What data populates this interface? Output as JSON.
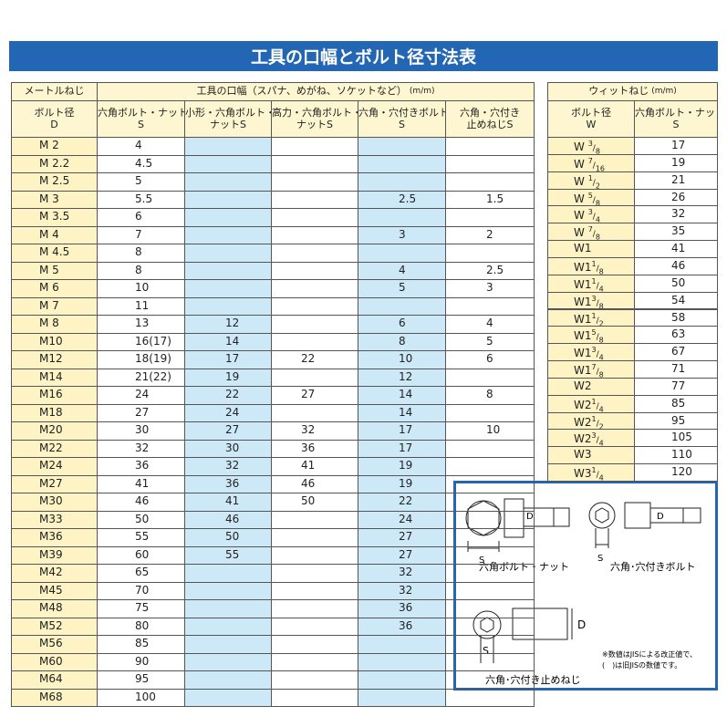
{
  "title": "工具の口幅とボルト径寸法表",
  "metric_table": {
    "group_left": "メートルねじ",
    "group_right": "工具の口幅（スパナ、めがね、ソケットなど）",
    "unit": "(m/m)",
    "columns": [
      [
        "ボルト径",
        "D"
      ],
      [
        "六角ボルト・ナット",
        "S"
      ],
      [
        "小形・六角ボルト・",
        "ナットS"
      ],
      [
        "高力・六角ボルト・",
        "ナットS"
      ],
      [
        "六角・穴付きボルト",
        "S"
      ],
      [
        "六角・穴付き",
        "止めねじS"
      ]
    ],
    "rows": [
      [
        "M 2",
        "4",
        null,
        null,
        null,
        null
      ],
      [
        "M 2.2",
        "4.5",
        null,
        null,
        null,
        null
      ],
      [
        "M 2.5",
        "5",
        null,
        null,
        null,
        null
      ],
      [
        "M 3",
        "5.5",
        null,
        null,
        "2.5",
        "1.5"
      ],
      [
        "M 3.5",
        "6",
        null,
        null,
        null,
        null
      ],
      [
        "M 4",
        "7",
        null,
        null,
        "3",
        "2"
      ],
      [
        "M 4.5",
        "8",
        null,
        null,
        null,
        null
      ],
      [
        "M 5",
        "8",
        null,
        null,
        "4",
        "2.5"
      ],
      [
        "M 6",
        "10",
        null,
        null,
        "5",
        "3"
      ],
      [
        "M 7",
        "11",
        null,
        null,
        null,
        null
      ],
      [
        "M 8",
        "13",
        "12",
        null,
        "6",
        "4"
      ],
      [
        "M10",
        "16(17)",
        "14",
        null,
        "8",
        "5"
      ],
      [
        "M12",
        "18(19)",
        "17",
        "22",
        "10",
        "6"
      ],
      [
        "M14",
        "21(22)",
        "19",
        null,
        "12",
        null
      ],
      [
        "M16",
        "24",
        "22",
        "27",
        "14",
        "8"
      ],
      [
        "M18",
        "27",
        "24",
        null,
        "14",
        null
      ],
      [
        "M20",
        "30",
        "27",
        "32",
        "17",
        "10"
      ],
      [
        "M22",
        "32",
        "30",
        "36",
        "17",
        null
      ],
      [
        "M24",
        "36",
        "32",
        "41",
        "19",
        null
      ],
      [
        "M27",
        "41",
        "36",
        "46",
        "19",
        null
      ],
      [
        "M30",
        "46",
        "41",
        "50",
        "22",
        null
      ],
      [
        "M33",
        "50",
        "46",
        null,
        "24",
        null
      ],
      [
        "M36",
        "55",
        "50",
        null,
        "27",
        null
      ],
      [
        "M39",
        "60",
        "55",
        null,
        "27",
        null
      ],
      [
        "M42",
        "65",
        null,
        null,
        "32",
        null
      ],
      [
        "M45",
        "70",
        null,
        null,
        "32",
        null
      ],
      [
        "M48",
        "75",
        null,
        null,
        "36",
        null
      ],
      [
        "M52",
        "80",
        null,
        null,
        "36",
        null
      ],
      [
        "M56",
        "85",
        null,
        null,
        null,
        null
      ],
      [
        "M60",
        "90",
        null,
        null,
        null,
        null
      ],
      [
        "M64",
        "95",
        null,
        null,
        null,
        null
      ],
      [
        "M68",
        "100",
        null,
        null,
        null,
        null
      ]
    ]
  },
  "whitworth_table": {
    "group": "ウィットねじ",
    "unit": "(m/m)",
    "columns": [
      [
        "ボルト径",
        "W"
      ],
      [
        "六角ボルト・ナット",
        "S"
      ]
    ],
    "rows": [
      [
        {
          "base": "W ",
          "num": "3",
          "den": "8"
        },
        "17"
      ],
      [
        {
          "base": "W ",
          "num": "7",
          "den": "16"
        },
        "19"
      ],
      [
        {
          "base": "W ",
          "num": "1",
          "den": "2"
        },
        "21"
      ],
      [
        {
          "base": "W ",
          "num": "5",
          "den": "8"
        },
        "26"
      ],
      [
        {
          "base": "W ",
          "num": "3",
          "den": "4"
        },
        "32"
      ],
      [
        {
          "base": "W ",
          "num": "7",
          "den": "8"
        },
        "35"
      ],
      [
        {
          "base": "W1"
        },
        "41"
      ],
      [
        {
          "base": "W1",
          "num": "1",
          "den": "8"
        },
        "46"
      ],
      [
        {
          "base": "W1",
          "num": "1",
          "den": "4"
        },
        "50"
      ],
      [
        {
          "base": "W1",
          "num": "3",
          "den": "8"
        },
        "54"
      ],
      [
        {
          "base": "W1",
          "num": "1",
          "den": "2"
        },
        "58"
      ],
      [
        {
          "base": "W1",
          "num": "5",
          "den": "8"
        },
        "63"
      ],
      [
        {
          "base": "W1",
          "num": "3",
          "den": "4"
        },
        "67"
      ],
      [
        {
          "base": "W1",
          "num": "7",
          "den": "8"
        },
        "71"
      ],
      [
        {
          "base": "W2"
        },
        "77"
      ],
      [
        {
          "base": "W2",
          "num": "1",
          "den": "4"
        },
        "85"
      ],
      [
        {
          "base": "W2",
          "num": "1",
          "den": "2"
        },
        "95"
      ],
      [
        {
          "base": "W2",
          "num": "3",
          "den": "4"
        },
        "105"
      ],
      [
        {
          "base": "W3"
        },
        "110"
      ],
      [
        {
          "base": "W3",
          "num": "1",
          "den": "4"
        },
        "120"
      ]
    ]
  },
  "diagram": {
    "hex_bolt": "六角ボルト・ナット",
    "socket_bolt": "六角･穴付きボルト",
    "set_screw": "六角･穴付き止めねじ",
    "s": "S",
    "d": "D",
    "notes": [
      "※数値はJISによる改正値で、",
      "(　)は旧JISの数値です。"
    ]
  }
}
